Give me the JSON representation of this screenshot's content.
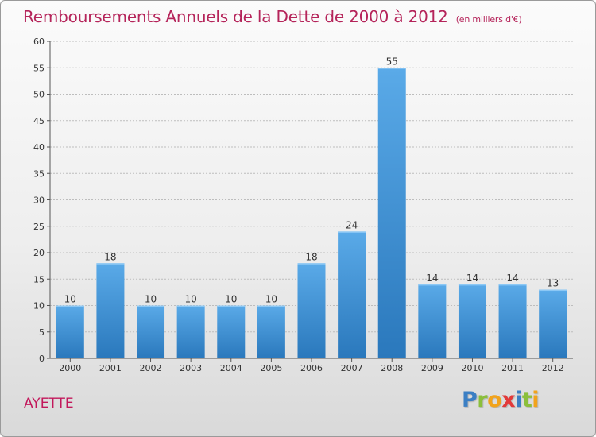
{
  "title": "Remboursements Annuels de la Dette de 2000 à 2012",
  "unit_note": "(en milliers d'€)",
  "commune": "AYETTE",
  "logo": {
    "text": "Proxiti",
    "letters": [
      {
        "ch": "P",
        "color": "#3b7fc4"
      },
      {
        "ch": "r",
        "color": "#8bbf3b"
      },
      {
        "ch": "o",
        "color": "#f2a31b"
      },
      {
        "ch": "x",
        "color": "#e23a3a"
      },
      {
        "ch": "i",
        "color": "#3b7fc4"
      },
      {
        "ch": "t",
        "color": "#8bbf3b"
      },
      {
        "ch": "i",
        "color": "#f2a31b"
      }
    ]
  },
  "colors": {
    "bar_top": "#5aaae8",
    "bar_bottom": "#2a78bc",
    "title": "#b5245a",
    "grid": "#bdbdbd"
  },
  "chart_data": {
    "type": "bar",
    "title": "Remboursements Annuels de la Dette de 2000 à 2012",
    "xlabel": "",
    "ylabel": "",
    "categories": [
      "2000",
      "2001",
      "2002",
      "2003",
      "2004",
      "2005",
      "2006",
      "2007",
      "2008",
      "2009",
      "2010",
      "2011",
      "2012"
    ],
    "values": [
      10,
      18,
      10,
      10,
      10,
      10,
      18,
      24,
      55,
      14,
      14,
      14,
      13
    ],
    "ylim": [
      0,
      60
    ],
    "yticks": [
      0,
      5,
      10,
      15,
      20,
      25,
      30,
      35,
      40,
      45,
      50,
      55,
      60
    ],
    "grid": true,
    "data_labels": true
  }
}
